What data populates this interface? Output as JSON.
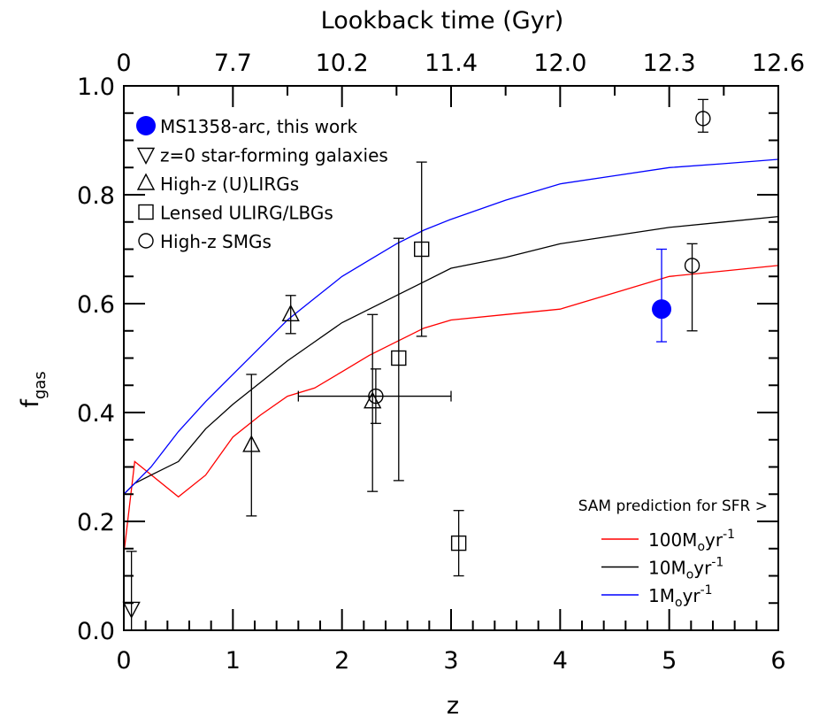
{
  "chart_data": {
    "type": "scatter",
    "title": "",
    "xlabel": "z",
    "ylabel_main": "f",
    "ylabel_sub": "gas",
    "top_xlabel": "Lookback time (Gyr)",
    "xlim": [
      0,
      6
    ],
    "ylim": [
      0,
      1
    ],
    "x_ticks": [
      0,
      1,
      2,
      3,
      4,
      5,
      6
    ],
    "x_tick_labels": [
      "0",
      "1",
      "2",
      "3",
      "4",
      "5",
      "6"
    ],
    "y_ticks": [
      0.0,
      0.2,
      0.4,
      0.6,
      0.8,
      1.0
    ],
    "y_tick_labels": [
      "0.0",
      "0.2",
      "0.4",
      "0.6",
      "0.8",
      "1.0"
    ],
    "top_ticks_z": [
      0,
      1,
      2,
      3,
      4,
      5,
      6
    ],
    "top_tick_labels": [
      "0",
      "7.7",
      "10.2",
      "11.4",
      "12.0",
      "12.3",
      "12.6"
    ],
    "grid": false,
    "legend_position": "top-left",
    "points": [
      {
        "series": "ms1358",
        "x": 4.93,
        "y": 0.59,
        "ylow": 0.53,
        "yhigh": 0.7
      },
      {
        "series": "z0",
        "x": 0.07,
        "y": 0.04,
        "ylow": 0.0,
        "yhigh": 0.145
      },
      {
        "series": "ulirg",
        "x": 1.17,
        "y": 0.34,
        "ylow": 0.21,
        "yhigh": 0.47
      },
      {
        "series": "ulirg",
        "x": 1.53,
        "y": 0.58,
        "ylow": 0.545,
        "yhigh": 0.615
      },
      {
        "series": "ulirg",
        "x": 2.28,
        "y": 0.42,
        "ylow": 0.255,
        "yhigh": 0.58
      },
      {
        "series": "lensed",
        "x": 2.52,
        "y": 0.5,
        "ylow": 0.275,
        "yhigh": 0.72
      },
      {
        "series": "lensed",
        "x": 2.73,
        "y": 0.7,
        "ylow": 0.54,
        "yhigh": 0.86
      },
      {
        "series": "lensed",
        "x": 3.07,
        "y": 0.16,
        "ylow": 0.1,
        "yhigh": 0.22
      },
      {
        "series": "smg",
        "x": 2.31,
        "y": 0.43,
        "ylow": 0.38,
        "yhigh": 0.48,
        "xlow": 1.6,
        "xhigh": 3.0
      },
      {
        "series": "smg",
        "x": 5.21,
        "y": 0.67,
        "ylow": 0.55,
        "yhigh": 0.71
      },
      {
        "series": "smg",
        "x": 5.31,
        "y": 0.94,
        "ylow": 0.915,
        "yhigh": 0.975
      }
    ],
    "legend": [
      {
        "key": "ms1358",
        "marker": "filled-circle",
        "label": "MS1358-arc, this work"
      },
      {
        "key": "z0",
        "marker": "down-triangle",
        "label": "z=0 star-forming galaxies"
      },
      {
        "key": "ulirg",
        "marker": "up-triangle",
        "label": "High-z (U)LIRGs"
      },
      {
        "key": "lensed",
        "marker": "square",
        "label": "Lensed ULIRG/LBGs"
      },
      {
        "key": "smg",
        "marker": "open-circle",
        "label": "High-z SMGs"
      }
    ],
    "sam_legend_title": "SAM prediction for SFR >",
    "lines": [
      {
        "key": "sfr100",
        "color": "#ff0000",
        "label_num": "100M",
        "label_sub": "o",
        "label_unit": "yr",
        "label_sup": "-1",
        "x": [
          0,
          0.1,
          0.5,
          0.75,
          1.0,
          1.25,
          1.5,
          1.75,
          2.0,
          2.25,
          2.5,
          2.75,
          3.0,
          3.5,
          4.0,
          4.5,
          5.0,
          5.5,
          6.0
        ],
        "y": [
          0.14,
          0.31,
          0.245,
          0.285,
          0.355,
          0.395,
          0.43,
          0.445,
          0.475,
          0.505,
          0.53,
          0.555,
          0.57,
          0.58,
          0.59,
          0.62,
          0.65,
          0.66,
          0.67
        ]
      },
      {
        "key": "sfr10",
        "color": "#000000",
        "label_num": "10M",
        "label_sub": "o",
        "label_unit": "yr",
        "label_sup": "-1",
        "x": [
          0,
          0.1,
          0.25,
          0.5,
          0.75,
          1.0,
          1.25,
          1.5,
          1.75,
          2.0,
          2.25,
          2.5,
          2.75,
          3.0,
          3.5,
          4.0,
          4.5,
          5.0,
          5.5,
          6.0
        ],
        "y": [
          0.25,
          0.27,
          0.285,
          0.31,
          0.37,
          0.415,
          0.455,
          0.495,
          0.53,
          0.565,
          0.59,
          0.615,
          0.64,
          0.665,
          0.685,
          0.71,
          0.725,
          0.74,
          0.75,
          0.76
        ]
      },
      {
        "key": "sfr1",
        "color": "#0000ff",
        "label_num": "1M",
        "label_sub": "o",
        "label_unit": "yr",
        "label_sup": "-1",
        "x": [
          0,
          0.25,
          0.5,
          0.75,
          1.0,
          1.25,
          1.5,
          1.75,
          2.0,
          2.25,
          2.5,
          2.75,
          3.0,
          3.5,
          4.0,
          4.5,
          5.0,
          5.5,
          6.0
        ],
        "y": [
          0.25,
          0.3,
          0.365,
          0.42,
          0.47,
          0.52,
          0.57,
          0.61,
          0.65,
          0.68,
          0.71,
          0.735,
          0.755,
          0.79,
          0.82,
          0.835,
          0.85,
          0.857,
          0.865
        ]
      }
    ],
    "colors": {
      "ms1358": "#0000ff",
      "axis": "#000000"
    }
  }
}
